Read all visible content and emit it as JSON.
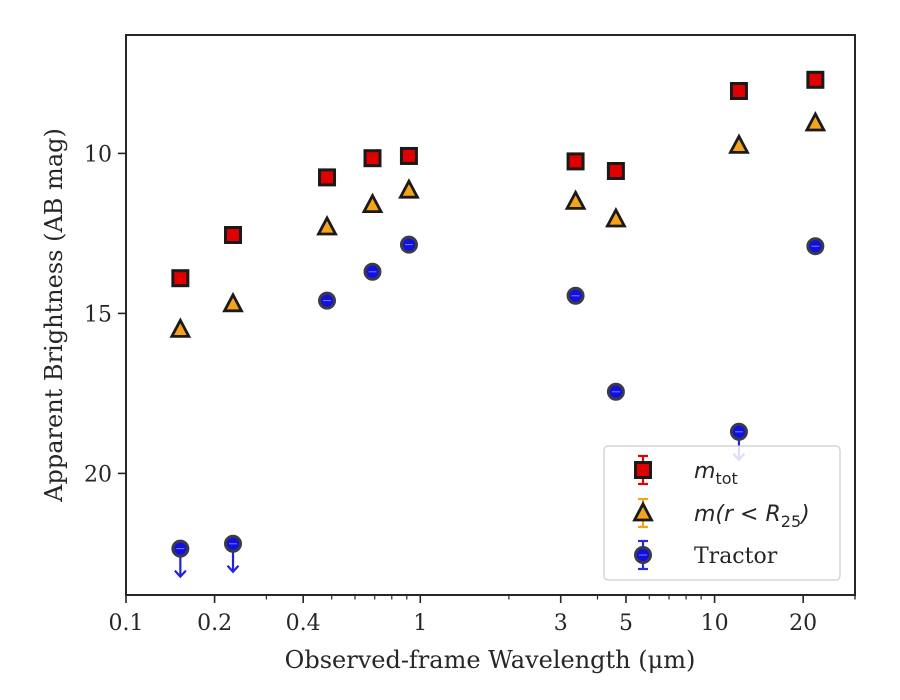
{
  "chart_data": {
    "type": "scatter",
    "xlabel": "Observed-frame Wavelength (μm)",
    "ylabel": "Apparent Brightness (AB mag)",
    "xscale": "log",
    "xlim": [
      0.1,
      30
    ],
    "ylim": [
      23.8,
      6.3
    ],
    "y_inverted": true,
    "x_ticks": [
      0.1,
      0.2,
      0.4,
      1,
      3,
      5,
      10,
      20
    ],
    "x_tick_labels": [
      "0.1",
      "0.2",
      "0.4",
      "1",
      "3",
      "5",
      "10",
      "20"
    ],
    "y_ticks": [
      10,
      15,
      20
    ],
    "y_tick_labels": [
      "10",
      "15",
      "20"
    ],
    "grid": false,
    "legend_position": "bottom-right",
    "series": [
      {
        "name": "m_tot",
        "legend_main": "m",
        "legend_sub": "tot",
        "marker": "square",
        "color": "#e00000",
        "errorbar_color": "#e00000",
        "points": [
          {
            "x": 0.153,
            "y": 13.9
          },
          {
            "x": 0.231,
            "y": 12.55
          },
          {
            "x": 0.482,
            "y": 10.75
          },
          {
            "x": 0.688,
            "y": 10.15
          },
          {
            "x": 0.915,
            "y": 10.08
          },
          {
            "x": 3.37,
            "y": 10.25
          },
          {
            "x": 4.62,
            "y": 10.55
          },
          {
            "x": 12.1,
            "y": 8.05
          },
          {
            "x": 22.0,
            "y": 7.7
          }
        ]
      },
      {
        "name": "m(r < R25)",
        "legend_main": "m(r < R",
        "legend_sub": "25",
        "legend_tail": ")",
        "marker": "triangle",
        "color": "#f5a31a",
        "errorbar_color": "#f5a31a",
        "points": [
          {
            "x": 0.153,
            "y": 15.5
          },
          {
            "x": 0.231,
            "y": 14.7
          },
          {
            "x": 0.482,
            "y": 12.3
          },
          {
            "x": 0.688,
            "y": 11.6
          },
          {
            "x": 0.915,
            "y": 11.15
          },
          {
            "x": 3.37,
            "y": 11.5
          },
          {
            "x": 4.62,
            "y": 12.05
          },
          {
            "x": 12.1,
            "y": 9.75
          },
          {
            "x": 22.0,
            "y": 9.05
          }
        ]
      },
      {
        "name": "Tractor",
        "marker": "circle",
        "color": "#1010e0",
        "errorbar_color": "#2a2ae0",
        "points": [
          {
            "x": 0.153,
            "y": 22.35,
            "upper_limit": true
          },
          {
            "x": 0.231,
            "y": 22.2,
            "upper_limit": true
          },
          {
            "x": 0.482,
            "y": 14.6
          },
          {
            "x": 0.688,
            "y": 13.7
          },
          {
            "x": 0.915,
            "y": 12.85
          },
          {
            "x": 3.37,
            "y": 14.45
          },
          {
            "x": 4.62,
            "y": 17.45
          },
          {
            "x": 12.1,
            "y": 18.7,
            "upper_limit": true
          },
          {
            "x": 22.0,
            "y": 12.9
          }
        ]
      }
    ]
  }
}
